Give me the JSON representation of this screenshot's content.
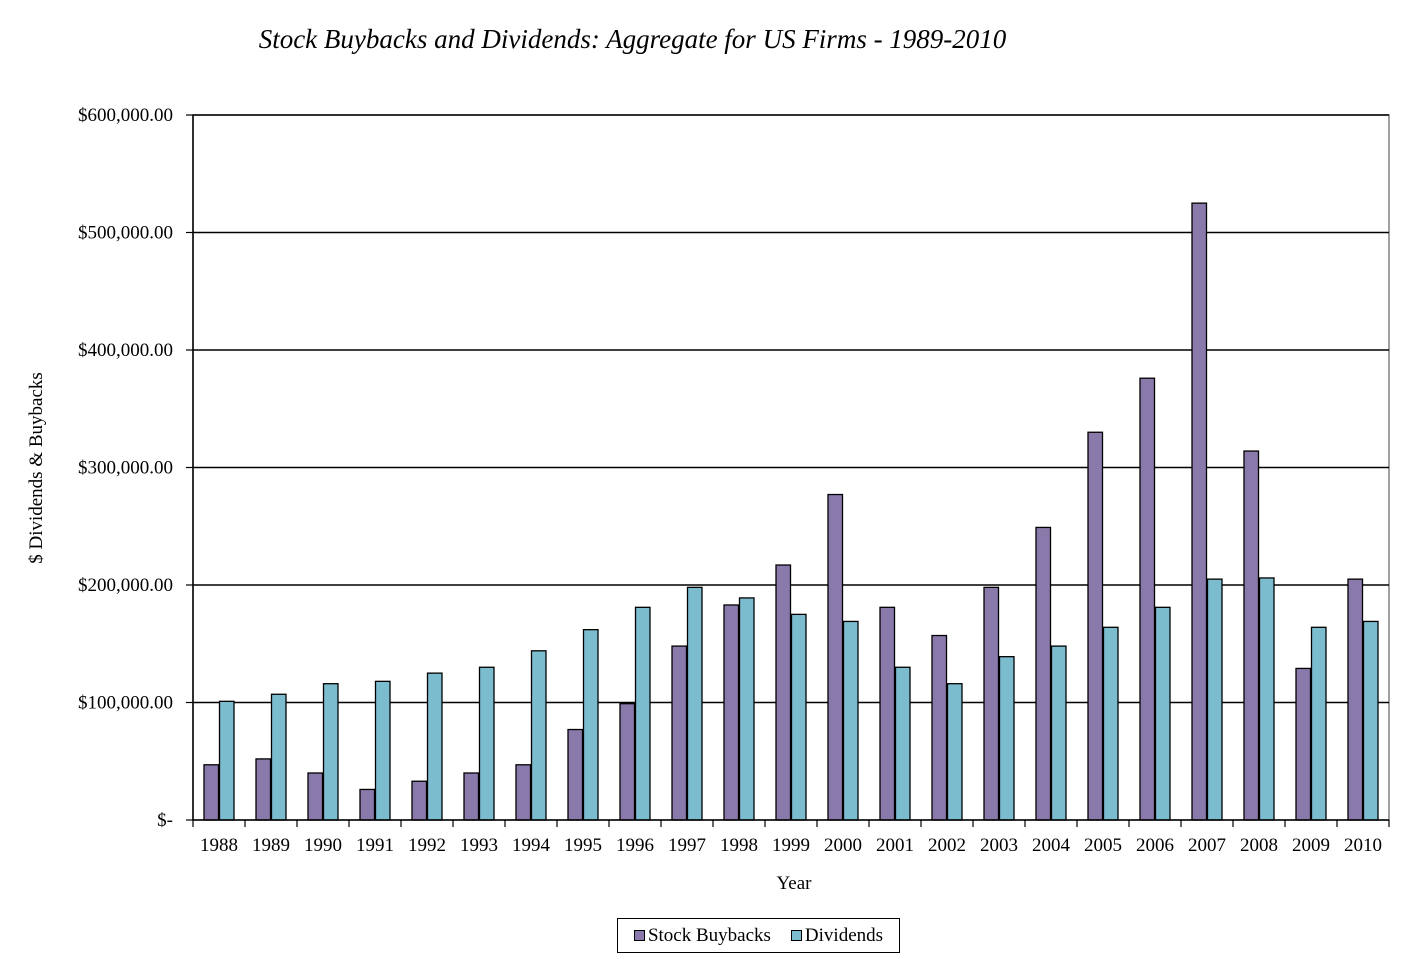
{
  "chart_data": {
    "type": "bar",
    "title": "Stock Buybacks and Dividends: Aggregate for US Firms - 1989-2010",
    "xlabel": "Year",
    "ylabel": "$ Dividends & Buybacks",
    "ylim": [
      0,
      600000
    ],
    "y_ticks": [
      0,
      100000,
      200000,
      300000,
      400000,
      500000,
      600000
    ],
    "y_tick_labels": [
      "$-",
      "$100,000.00",
      "$200,000.00",
      "$300,000.00",
      "$400,000.00",
      "$500,000.00",
      "$600,000.00"
    ],
    "grid": true,
    "legend_position": "bottom",
    "categories": [
      "1988",
      "1989",
      "1990",
      "1991",
      "1992",
      "1993",
      "1994",
      "1995",
      "1996",
      "1997",
      "1998",
      "1999",
      "2000",
      "2001",
      "2002",
      "2003",
      "2004",
      "2005",
      "2006",
      "2007",
      "2008",
      "2009",
      "2010"
    ],
    "series": [
      {
        "name": "Stock Buybacks",
        "color": "#8a7aab",
        "values": [
          47000,
          52000,
          40000,
          26000,
          33000,
          40000,
          47000,
          77000,
          99000,
          148000,
          183000,
          217000,
          277000,
          181000,
          157000,
          198000,
          249000,
          330000,
          376000,
          525000,
          314000,
          129000,
          205000
        ]
      },
      {
        "name": "Dividends",
        "color": "#7bbccf",
        "values": [
          101000,
          107000,
          116000,
          118000,
          125000,
          130000,
          144000,
          162000,
          181000,
          198000,
          189000,
          175000,
          169000,
          130000,
          116000,
          139000,
          148000,
          164000,
          181000,
          205000,
          206000,
          164000,
          169000
        ]
      }
    ]
  }
}
